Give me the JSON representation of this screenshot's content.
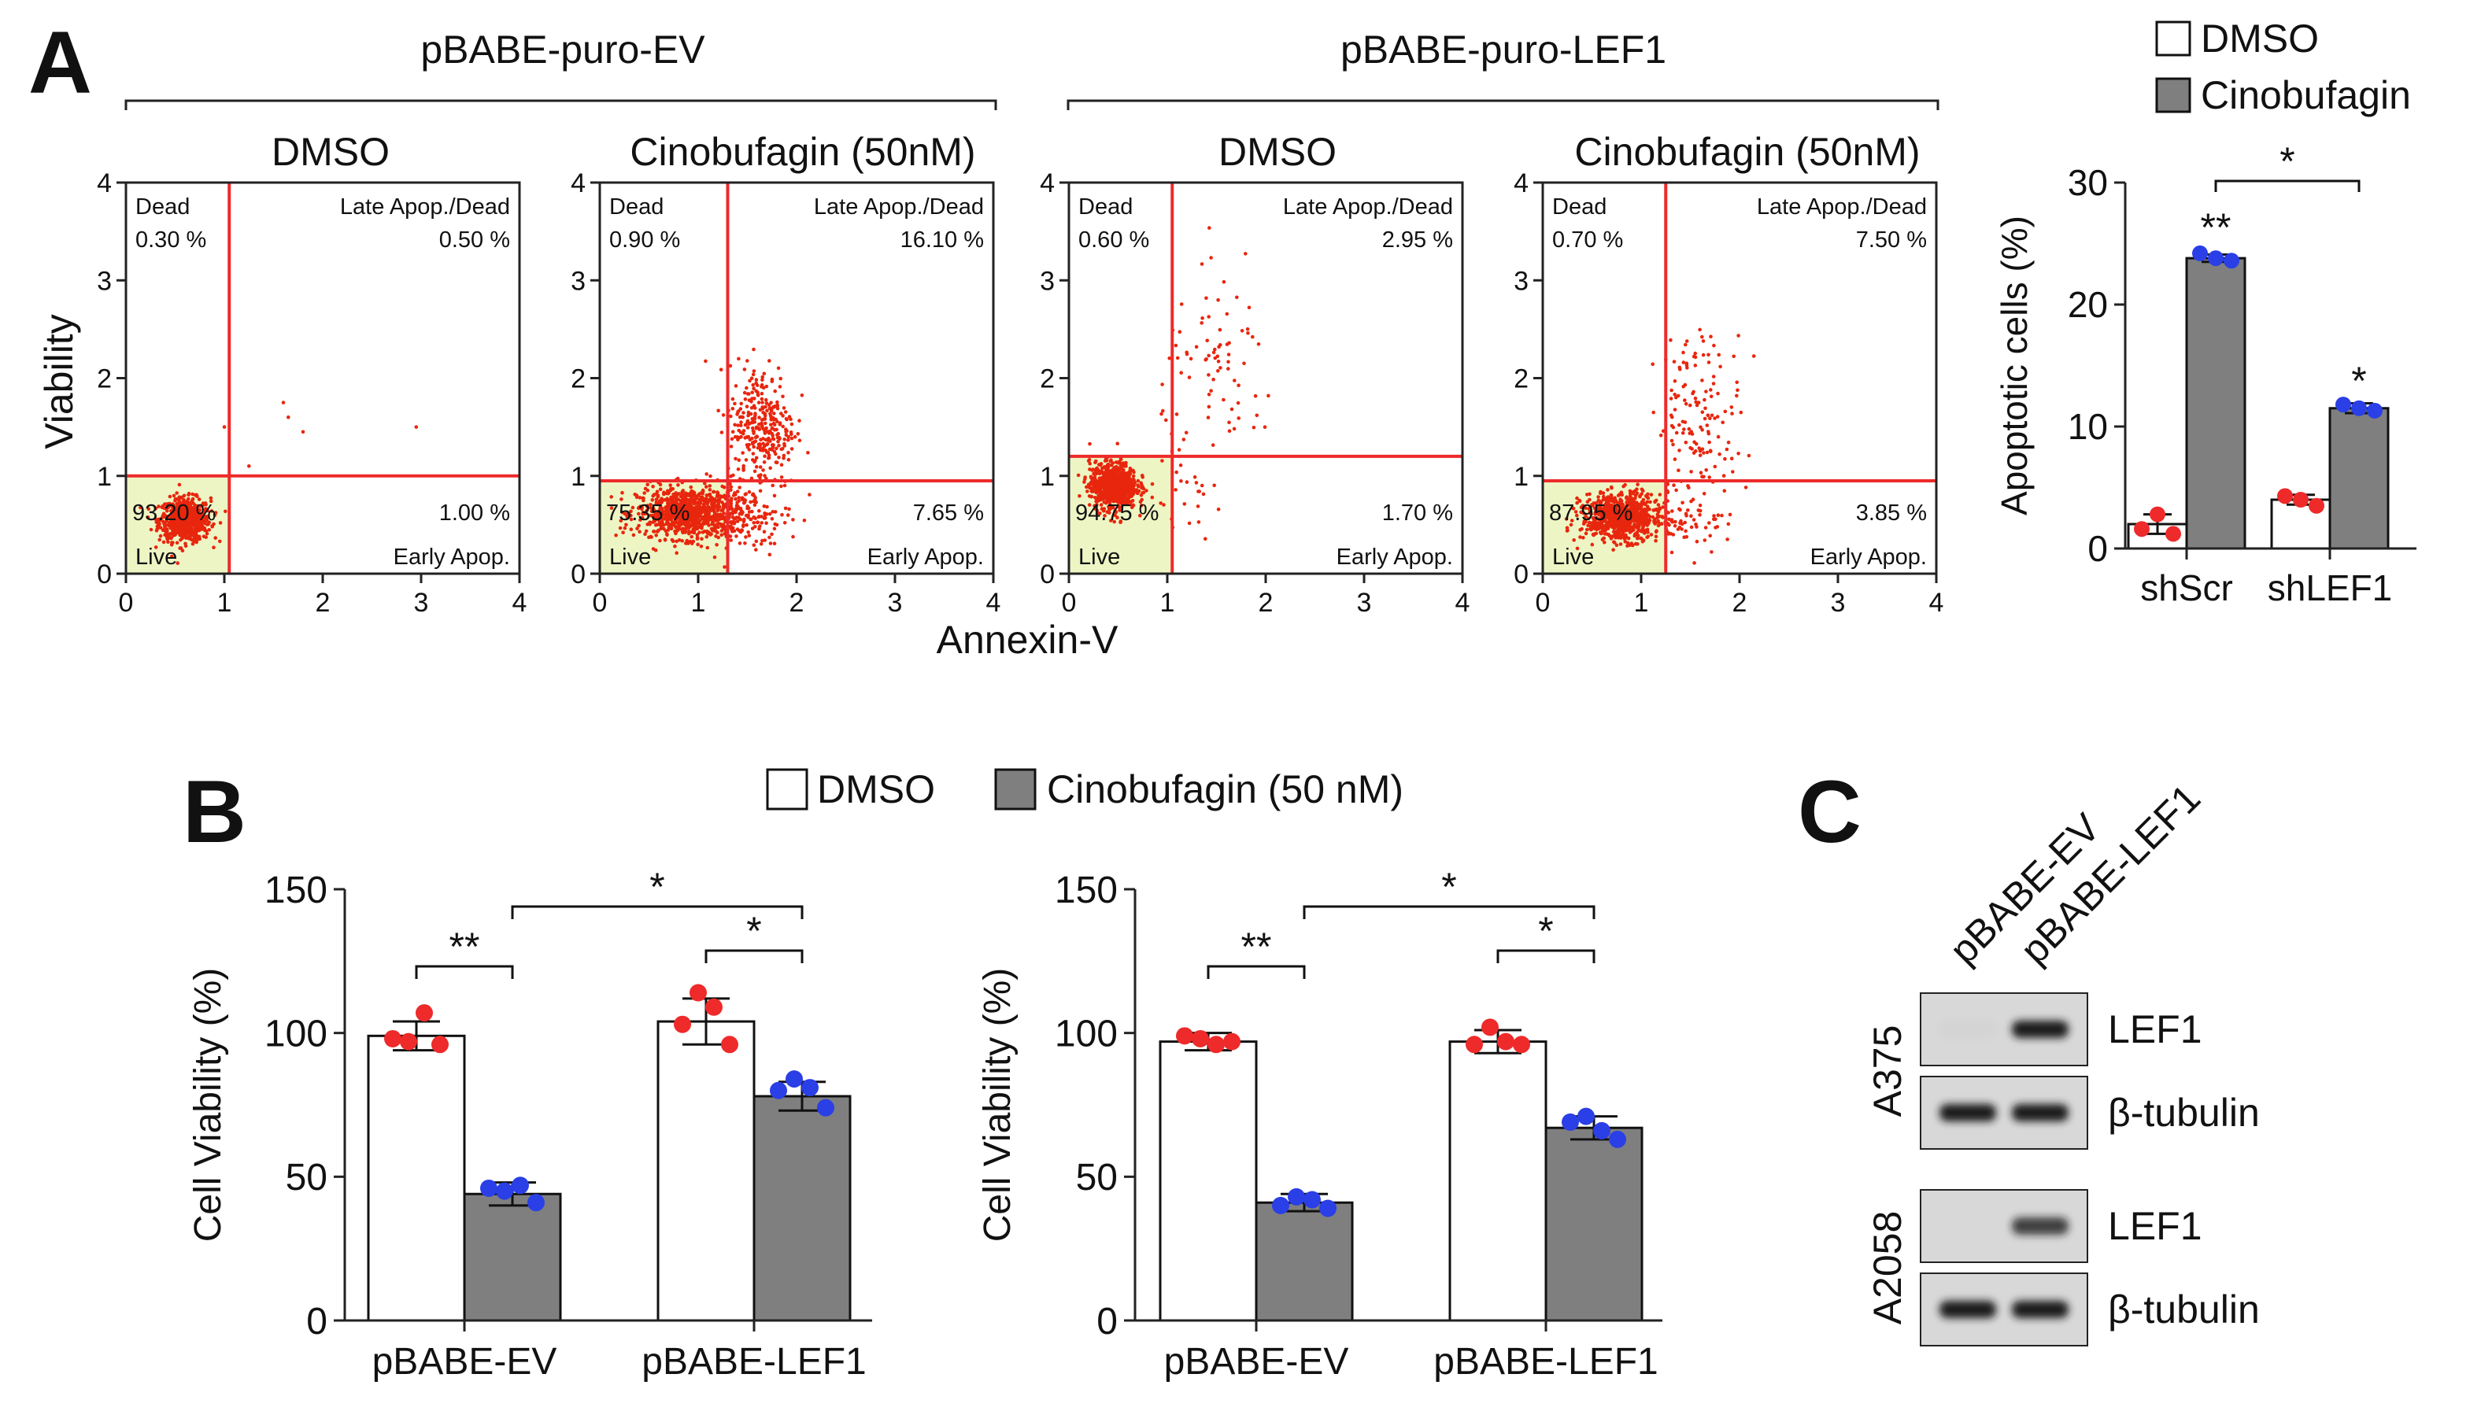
{
  "panels": {
    "A": "A",
    "B": "B",
    "C": "C"
  },
  "colors": {
    "gate": "#ee2a2a",
    "dot_red": "#ee2a2a",
    "dot_blue": "#2a3fe6",
    "bar_treated": "#7f7f7f",
    "bar_control": "#ffffff",
    "live_quadrant": "#eef5c4",
    "events": "#e8260e"
  },
  "legend": {
    "dmso": "DMSO",
    "cinobufagin": "Cinobufagin",
    "cinobufagin_50": "Cinobufagin (50 nM)"
  },
  "panelA": {
    "group1_title": "pBABE-puro-EV",
    "group2_title": "pBABE-puro-LEF1",
    "xlabel": "Annexin-V",
    "ylabel": "Viability",
    "axis_ticks": [
      "0",
      "1",
      "2",
      "3",
      "4"
    ],
    "quadrant_labels": {
      "dead": "Dead",
      "late": "Late Apop./Dead",
      "live": "Live",
      "early": "Early Apop."
    },
    "plots": [
      {
        "title": "DMSO",
        "dead": "0.30 %",
        "late": "0.50 %",
        "live": "93.20 %",
        "early": "1.00 %"
      },
      {
        "title": "Cinobufagin (50nM)",
        "dead": "0.90 %",
        "late": "16.10 %",
        "live": "75.35 %",
        "early": "7.65 %"
      },
      {
        "title": "DMSO",
        "dead": "0.60 %",
        "late": "2.95 %",
        "live": "94.75 %",
        "early": "1.70 %"
      },
      {
        "title": "Cinobufagin (50nM)",
        "dead": "0.70 %",
        "late": "7.50 %",
        "live": "87.95 %",
        "early": "3.85 %"
      }
    ]
  },
  "chart_data": [
    {
      "type": "scatter",
      "title": "pBABE-puro-EV / DMSO",
      "xlabel": "Annexin-V",
      "ylabel": "Viability",
      "xlim": [
        0,
        4
      ],
      "ylim": [
        0,
        4
      ],
      "gate": {
        "x": 1.05,
        "y": 1.0
      },
      "quadrants_percent": {
        "dead": 0.3,
        "late_apop_dead": 0.5,
        "live": 93.2,
        "early_apop": 1.0
      },
      "cluster": {
        "x": 0.6,
        "y": 0.55,
        "sx": 0.13,
        "sy": 0.11,
        "n": 700
      },
      "tail": [],
      "stray": [
        [
          1.0,
          1.5
        ],
        [
          1.6,
          1.75
        ],
        [
          1.65,
          1.6
        ],
        [
          1.8,
          1.45
        ],
        [
          2.95,
          1.5
        ],
        [
          1.25,
          1.1
        ]
      ]
    },
    {
      "type": "scatter",
      "title": "pBABE-puro-EV / Cinobufagin (50nM)",
      "xlabel": "Annexin-V",
      "ylabel": "Viability",
      "xlim": [
        0,
        4
      ],
      "ylim": [
        0,
        4
      ],
      "gate": {
        "x": 1.3,
        "y": 0.95
      },
      "quadrants_percent": {
        "dead": 0.9,
        "late_apop_dead": 16.1,
        "live": 75.35,
        "early_apop": 7.65
      },
      "cluster": {
        "x": 0.9,
        "y": 0.62,
        "sx": 0.26,
        "sy": 0.13,
        "n": 900
      },
      "tail": [
        {
          "x": 1.65,
          "y": 1.5,
          "sx": 0.17,
          "sy": 0.32,
          "n": 330
        },
        {
          "x": 1.5,
          "y": 0.55,
          "sx": 0.22,
          "sy": 0.16,
          "n": 110
        }
      ],
      "stray": []
    },
    {
      "type": "scatter",
      "title": "pBABE-puro-LEF1 / DMSO",
      "xlabel": "Annexin-V",
      "ylabel": "Viability",
      "xlim": [
        0,
        4
      ],
      "ylim": [
        0,
        4
      ],
      "gate": {
        "x": 1.05,
        "y": 1.2
      },
      "quadrants_percent": {
        "dead": 0.6,
        "late_apop_dead": 2.95,
        "live": 94.75,
        "early_apop": 1.7
      },
      "cluster": {
        "x": 0.45,
        "y": 0.9,
        "sx": 0.12,
        "sy": 0.12,
        "n": 750
      },
      "tail": [
        {
          "x": 1.55,
          "y": 2.05,
          "sx": 0.3,
          "sy": 0.45,
          "n": 80
        },
        {
          "x": 1.2,
          "y": 0.75,
          "sx": 0.2,
          "sy": 0.2,
          "n": 25
        }
      ],
      "stray": []
    },
    {
      "type": "scatter",
      "title": "pBABE-puro-LEF1 / Cinobufagin (50nM)",
      "xlabel": "Annexin-V",
      "ylabel": "Viability",
      "xlim": [
        0,
        4
      ],
      "ylim": [
        0,
        4
      ],
      "gate": {
        "x": 1.25,
        "y": 0.95
      },
      "quadrants_percent": {
        "dead": 0.7,
        "late_apop_dead": 7.5,
        "live": 87.95,
        "early_apop": 3.85
      },
      "cluster": {
        "x": 0.8,
        "y": 0.58,
        "sx": 0.2,
        "sy": 0.12,
        "n": 800
      },
      "tail": [
        {
          "x": 1.6,
          "y": 1.6,
          "sx": 0.22,
          "sy": 0.45,
          "n": 150
        },
        {
          "x": 1.5,
          "y": 0.55,
          "sx": 0.2,
          "sy": 0.15,
          "n": 50
        }
      ],
      "stray": []
    },
    {
      "type": "bar",
      "title": "",
      "xlabel": "",
      "ylabel": "Apoptotic cells (%)",
      "ylim": [
        0,
        30
      ],
      "yticks": [
        "0",
        "10",
        "20",
        "30"
      ],
      "categories": [
        "shScr",
        "shLEF1"
      ],
      "series": [
        {
          "name": "DMSO",
          "values": [
            2.0,
            4.0
          ],
          "errors": [
            0.8,
            0.4
          ],
          "points": [
            [
              1.6,
              2.8,
              1.2
            ],
            [
              4.3,
              4.0,
              3.5
            ]
          ]
        },
        {
          "name": "Cinobufagin",
          "values": [
            23.8,
            11.5
          ],
          "errors": [
            0.3,
            0.4
          ],
          "points": [
            [
              24.2,
              23.8,
              23.6
            ],
            [
              11.8,
              11.5,
              11.3
            ]
          ]
        }
      ],
      "annotations": [
        {
          "text": "**",
          "over": "shScr-Cinobufagin"
        },
        {
          "text": "*",
          "over": "shLEF1-Cinobufagin"
        },
        {
          "text": "*",
          "bracket": "shScr-Cinobufagin to shLEF1-Cinobufagin"
        }
      ]
    },
    {
      "type": "bar",
      "title": "",
      "xlabel": "",
      "ylabel": "Cell Viability (%)",
      "ylim": [
        0,
        150
      ],
      "yticks": [
        "0",
        "50",
        "100",
        "150"
      ],
      "categories": [
        "pBABE-EV",
        "pBABE-LEF1"
      ],
      "series": [
        {
          "name": "DMSO",
          "values": [
            99,
            104
          ],
          "errors": [
            5,
            8
          ],
          "points": [
            [
              98,
              97,
              107,
              96
            ],
            [
              103,
              114,
              109,
              96
            ]
          ]
        },
        {
          "name": "Cinobufagin (50 nM)",
          "values": [
            44,
            78
          ],
          "errors": [
            4,
            5
          ],
          "points": [
            [
              46,
              45,
              47,
              41
            ],
            [
              80,
              84,
              81,
              74
            ]
          ]
        }
      ],
      "annotations": [
        {
          "text": "**",
          "bracket": "pBABE-EV DMSO vs Cinobufagin"
        },
        {
          "text": "*",
          "bracket": "pBABE-LEF1 DMSO vs Cinobufagin"
        },
        {
          "text": "*",
          "bracket": "pBABE-EV Cinobufagin vs pBABE-LEF1 Cinobufagin"
        }
      ]
    },
    {
      "type": "bar",
      "title": "",
      "xlabel": "",
      "ylabel": "Cell Viability (%)",
      "ylim": [
        0,
        150
      ],
      "yticks": [
        "0",
        "50",
        "100",
        "150"
      ],
      "categories": [
        "pBABE-EV",
        "pBABE-LEF1"
      ],
      "series": [
        {
          "name": "DMSO",
          "values": [
            97,
            97
          ],
          "errors": [
            3,
            4
          ],
          "points": [
            [
              99,
              98,
              96,
              97
            ],
            [
              96,
              102,
              97,
              96
            ]
          ]
        },
        {
          "name": "Cinobufagin (50 nM)",
          "values": [
            41,
            67
          ],
          "errors": [
            3,
            4
          ],
          "points": [
            [
              40,
              43,
              42,
              39
            ],
            [
              69,
              71,
              66,
              63
            ]
          ]
        }
      ],
      "annotations": [
        {
          "text": "**",
          "bracket": "pBABE-EV DMSO vs Cinobufagin"
        },
        {
          "text": "*",
          "bracket": "pBABE-LEF1 DMSO vs Cinobufagin"
        },
        {
          "text": "*",
          "bracket": "pBABE-EV Cinobufagin vs pBABE-LEF1 Cinobufagin"
        }
      ]
    }
  ],
  "panelC": {
    "lanes": [
      "pBABE-EV",
      "pBABE-LEF1"
    ],
    "blocks": [
      {
        "cell_line": "A375",
        "rows": [
          {
            "protein": "LEF1",
            "bands": [
              0.02,
              1.0
            ]
          },
          {
            "protein": "β-tubulin",
            "bands": [
              1.0,
              1.0
            ]
          }
        ]
      },
      {
        "cell_line": "A2058",
        "rows": [
          {
            "protein": "LEF1",
            "bands": [
              0.0,
              0.8
            ]
          },
          {
            "protein": "β-tubulin",
            "bands": [
              1.0,
              1.0
            ]
          }
        ]
      }
    ]
  }
}
